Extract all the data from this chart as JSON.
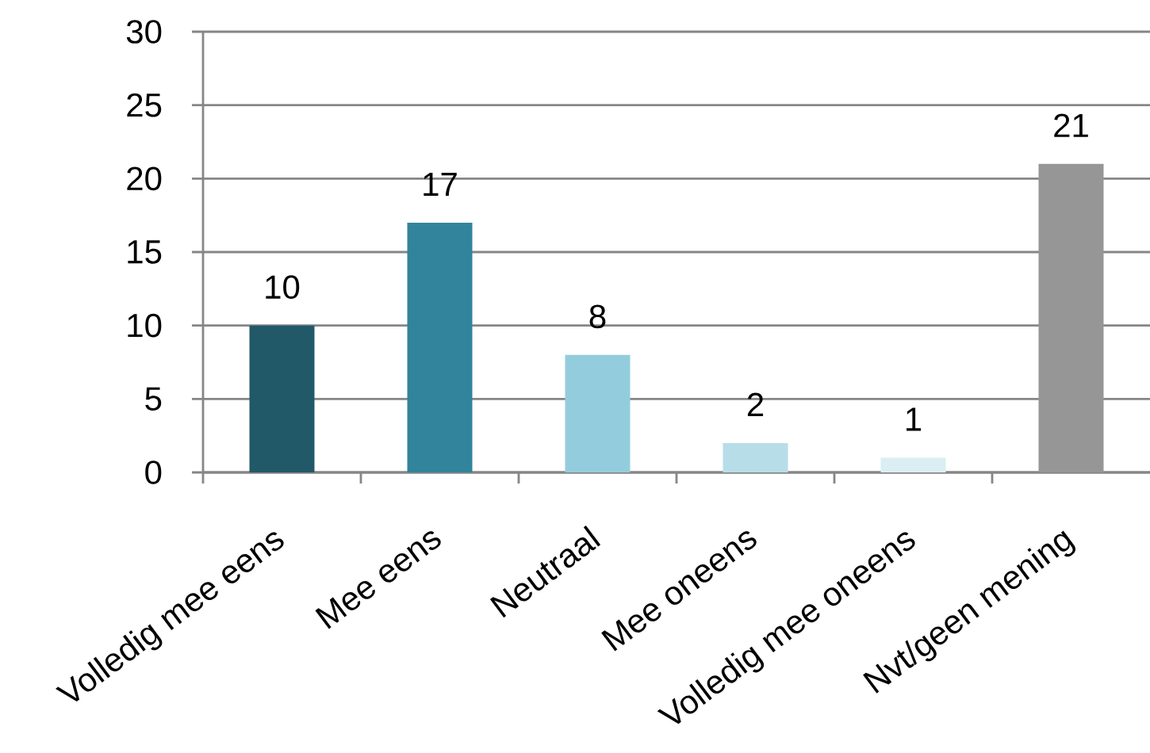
{
  "chart_data": {
    "type": "bar",
    "categories": [
      "Volledig mee eens",
      "Mee eens",
      "Neutraal",
      "Mee oneens",
      "Volledig mee oneens",
      "Nvt/geen mening"
    ],
    "values": [
      10,
      17,
      8,
      2,
      1,
      21
    ],
    "colors": [
      "#215968",
      "#31849b",
      "#93cddd",
      "#b7dee8",
      "#dbeef4",
      "#969696"
    ],
    "ylim": [
      0,
      30
    ],
    "yticks": [
      0,
      5,
      10,
      15,
      20,
      25,
      30
    ],
    "grid": "y",
    "data_labels": true
  }
}
